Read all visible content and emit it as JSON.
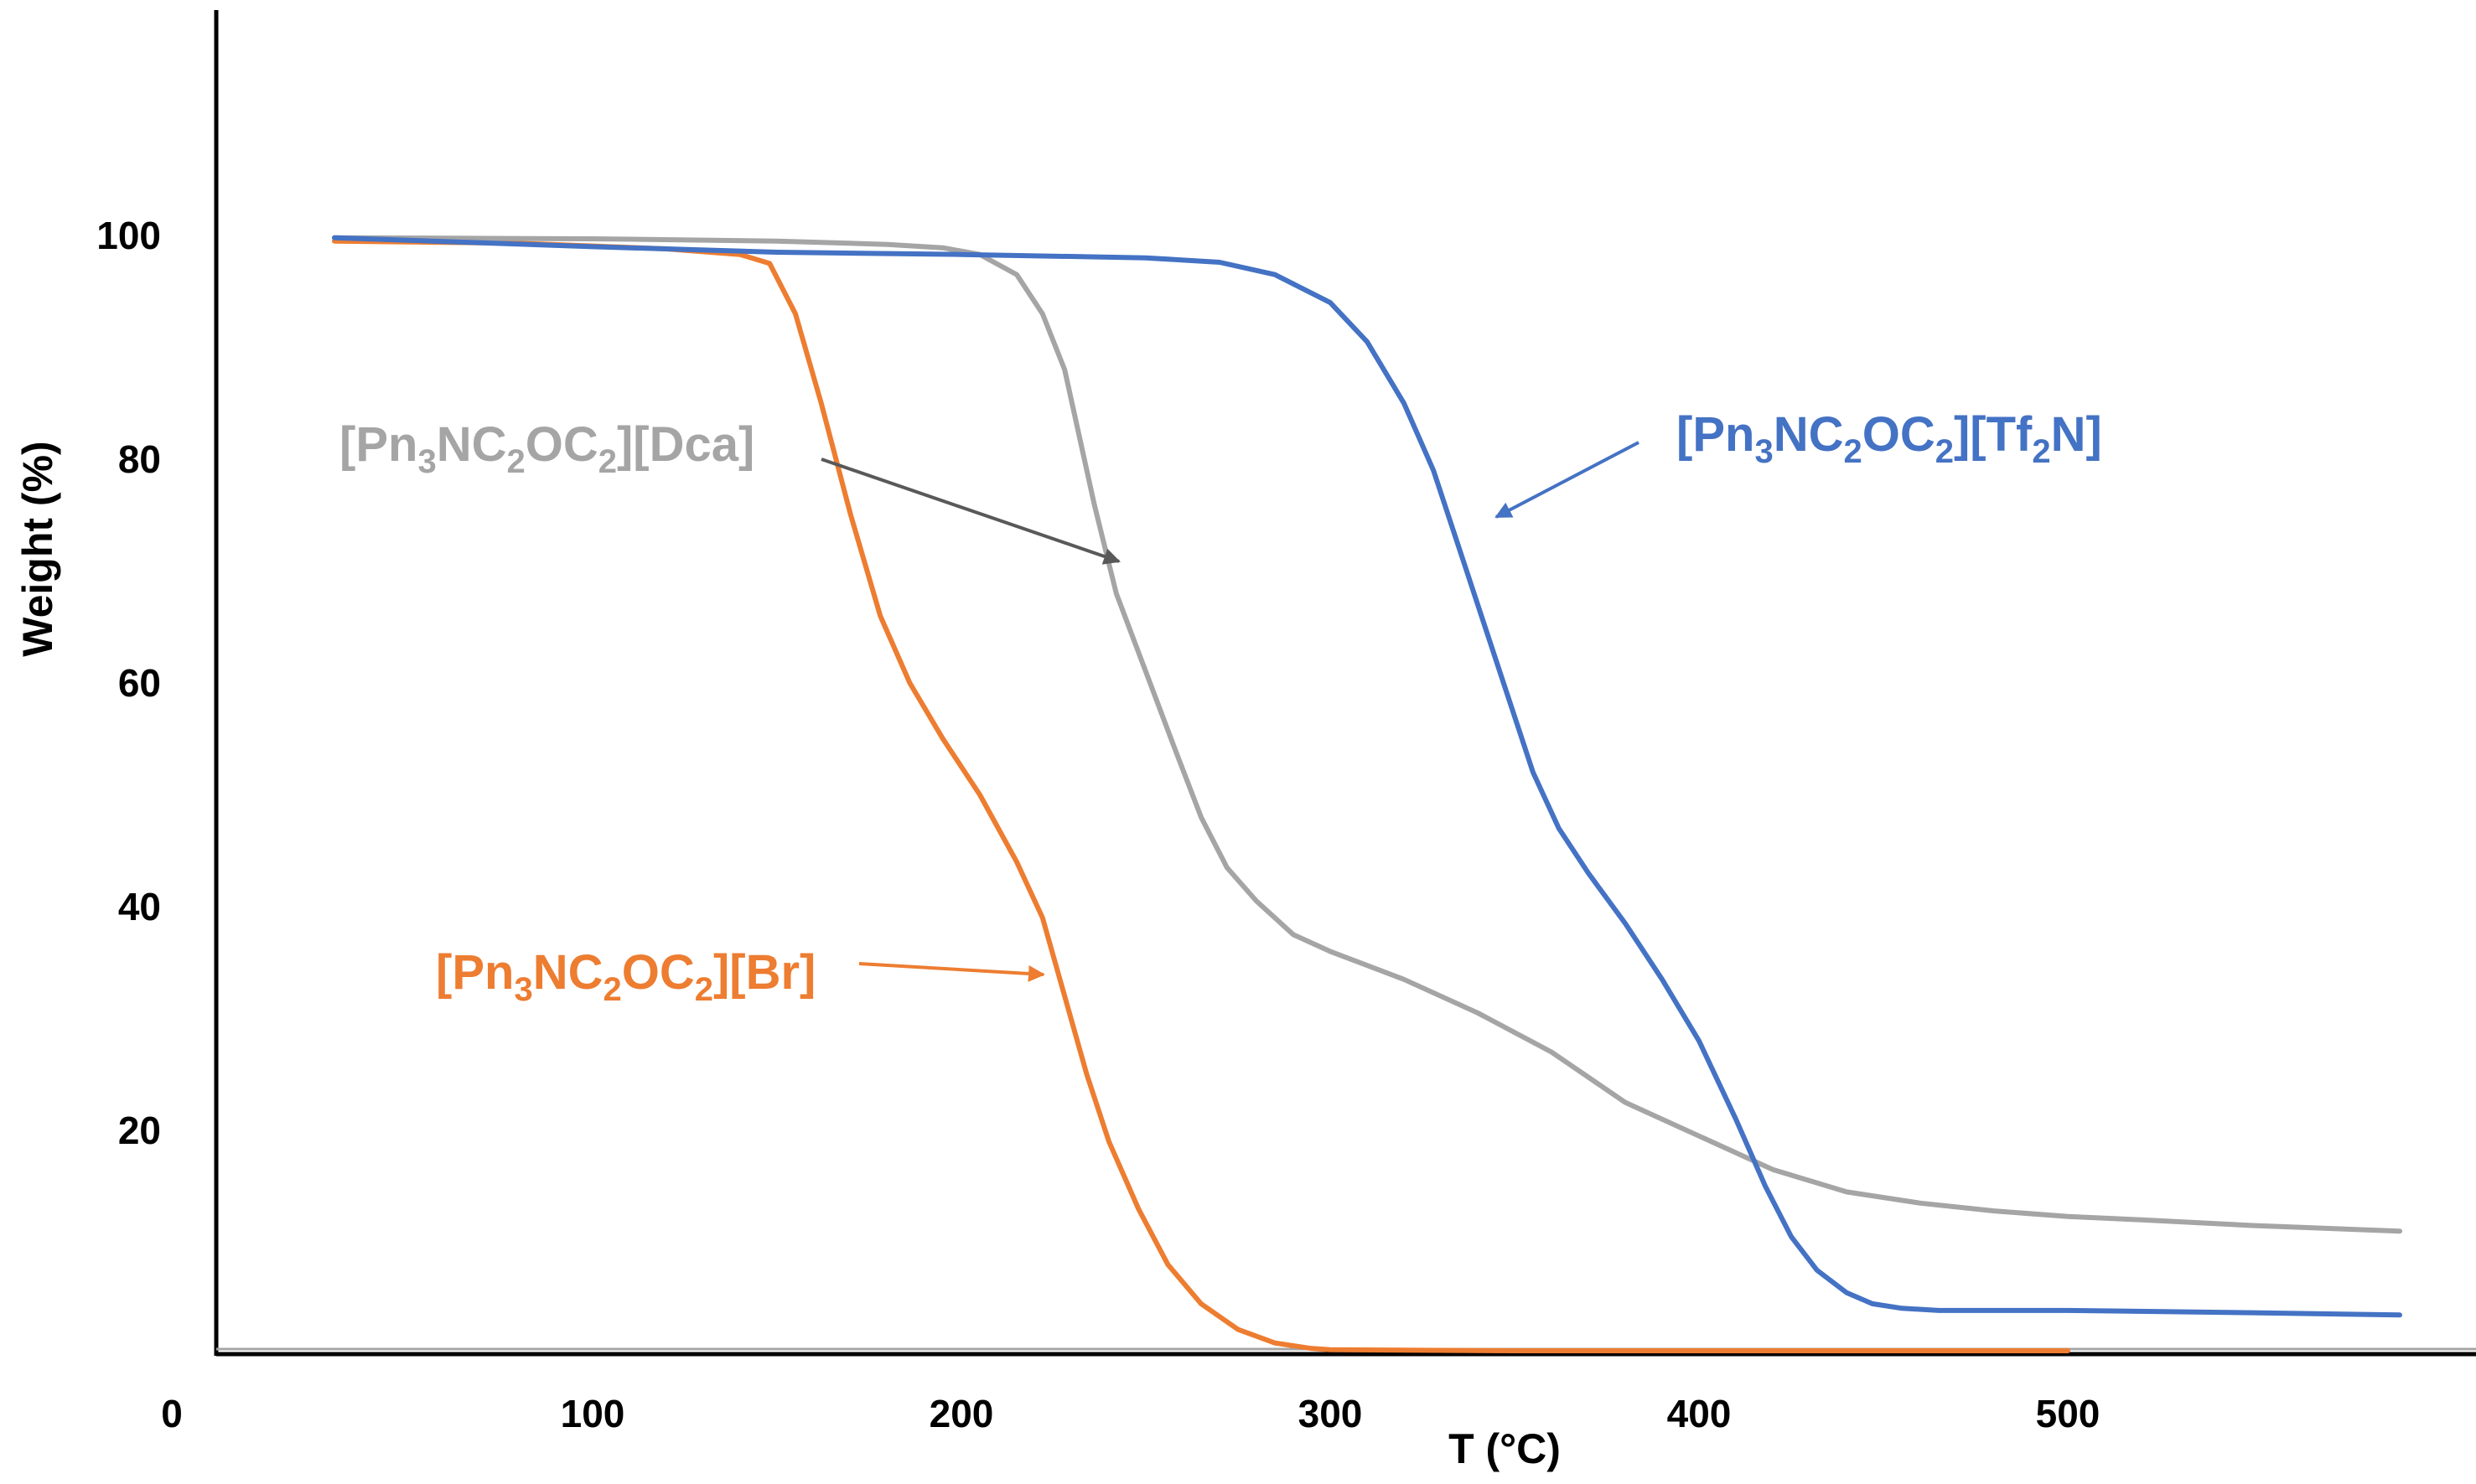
{
  "chart_data": {
    "type": "line",
    "title": "",
    "xlabel": "T (°C)",
    "ylabel": "Weight (%)",
    "xlim": [
      -30,
      600
    ],
    "ylim": [
      0,
      110
    ],
    "x_ticks": [
      0,
      100,
      200,
      300,
      400,
      500
    ],
    "y_ticks": [
      20,
      40,
      60,
      80,
      100
    ],
    "grid": false,
    "legend": "none",
    "series": [
      {
        "name": "[Pn3NC2OC2][Br]",
        "label_parts": [
          "[Pn",
          "3",
          "NC",
          "2",
          "OC",
          "2",
          "][Br]"
        ],
        "color": "#ED7D31",
        "x": [
          30,
          80,
          120,
          140,
          148,
          155,
          162,
          170,
          178,
          186,
          195,
          205,
          215,
          222,
          228,
          234,
          240,
          248,
          256,
          265,
          275,
          285,
          295,
          300,
          350,
          400,
          450,
          500
        ],
        "y": [
          99.5,
          99.3,
          98.8,
          98.3,
          97.5,
          93,
          85,
          75,
          66,
          60,
          55,
          50,
          44,
          39,
          32,
          25,
          19,
          13,
          8,
          4.5,
          2.2,
          1,
          0.5,
          0.4,
          0.3,
          0.3,
          0.3,
          0.3
        ]
      },
      {
        "name": "[Pn3NC2OC2][Dca]",
        "label_parts": [
          "[Pn",
          "3",
          "NC",
          "2",
          "OC",
          "2",
          "][Dca]"
        ],
        "color": "#A5A5A5",
        "x": [
          30,
          100,
          150,
          180,
          195,
          205,
          215,
          222,
          228,
          232,
          236,
          242,
          250,
          258,
          265,
          272,
          280,
          290,
          300,
          320,
          340,
          360,
          380,
          400,
          420,
          440,
          460,
          480,
          500,
          520,
          550,
          590
        ],
        "y": [
          99.8,
          99.7,
          99.5,
          99.2,
          98.9,
          98.3,
          96.5,
          93,
          88,
          82,
          76,
          68,
          61,
          54,
          48,
          43.5,
          40.5,
          37.5,
          36,
          33.5,
          30.5,
          27,
          22.5,
          19.5,
          16.5,
          14.5,
          13.5,
          12.8,
          12.3,
          12,
          11.5,
          11
        ]
      },
      {
        "name": "[Pn3NC2OC2][Tf2N]",
        "label_parts": [
          "[Pn",
          "3",
          "NC",
          "2",
          "OC",
          "2",
          "][Tf",
          "2",
          "N]"
        ],
        "color": "#4472C4",
        "x": [
          30,
          100,
          150,
          200,
          250,
          270,
          285,
          300,
          310,
          320,
          328,
          336,
          342,
          348,
          355,
          362,
          370,
          380,
          390,
          400,
          410,
          418,
          425,
          432,
          440,
          447,
          455,
          465,
          500,
          550,
          590
        ],
        "y": [
          99.8,
          99,
          98.5,
          98.3,
          98,
          97.6,
          96.5,
          94,
          90.5,
          85,
          79,
          71,
          65,
          59,
          52,
          47,
          43,
          38.5,
          33.5,
          28,
          21,
          15,
          10.5,
          7.5,
          5.5,
          4.5,
          4.1,
          3.9,
          3.9,
          3.7,
          3.5
        ]
      }
    ]
  }
}
